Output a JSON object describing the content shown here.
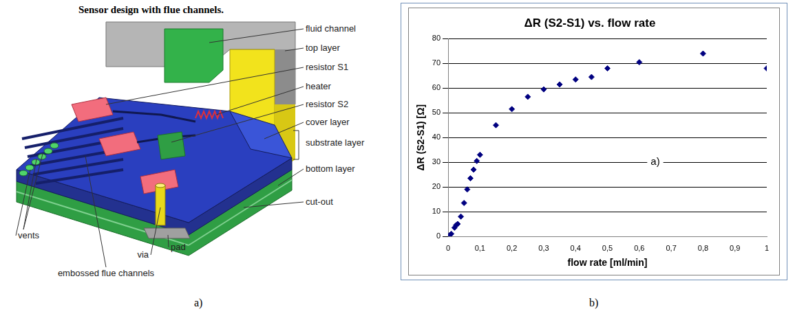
{
  "chart_data": {
    "type": "scatter",
    "title": "ΔR (S2-S1) vs. flow rate",
    "x_label": "flow rate [ml/min]",
    "y_label": "ΔR (S2-S1) [Ω]",
    "x": [
      0,
      0.005,
      0.01,
      0.02,
      0.025,
      0.03,
      0.04,
      0.05,
      0.06,
      0.07,
      0.08,
      0.09,
      0.1,
      0.15,
      0.2,
      0.25,
      0.3,
      0.35,
      0.4,
      0.45,
      0.5,
      0.6,
      0.8,
      1
    ],
    "values": [
      0,
      0.5,
      1,
      3.5,
      4.5,
      5,
      8,
      13.5,
      19,
      23.5,
      27,
      30.5,
      33,
      45,
      51.5,
      56.5,
      59.5,
      61.5,
      63.5,
      64.5,
      68,
      70.5,
      74,
      68
    ],
    "color": "#000080",
    "marker": "diamond",
    "xlim": [
      0,
      1
    ],
    "ylim": [
      0,
      80
    ],
    "xticks": [
      0,
      {
        "value": 0.1,
        "label": "0,1"
      },
      {
        "value": 0.2,
        "label": "0,2"
      },
      {
        "value": 0.3,
        "label": "0,3"
      },
      {
        "value": 0.4,
        "label": "0,4"
      },
      {
        "value": 0.5,
        "label": "0,5"
      },
      {
        "value": 0.6,
        "label": "0,6"
      },
      {
        "value": 0.7,
        "label": "0,7"
      },
      {
        "value": 0.8,
        "label": "0,8"
      },
      {
        "value": 0.9,
        "label": "0,9"
      },
      1
    ],
    "yticks": [
      0,
      10,
      20,
      30,
      40,
      50,
      60,
      70,
      80
    ],
    "grid": true,
    "annotations": [
      {
        "text": "a)",
        "x": 0.65,
        "y": 30
      }
    ]
  },
  "diagram": {
    "title": "Sensor design with flue channels.",
    "labels": [
      "fluid channel",
      "top layer",
      "resistor S1",
      "heater",
      "resistor S2",
      "cover layer",
      "substrate layer",
      "bottom layer",
      "cut-out",
      "vents",
      "via",
      "pad",
      "embossed flue channels"
    ]
  },
  "panel_labels": [
    "a)",
    "b)"
  ]
}
